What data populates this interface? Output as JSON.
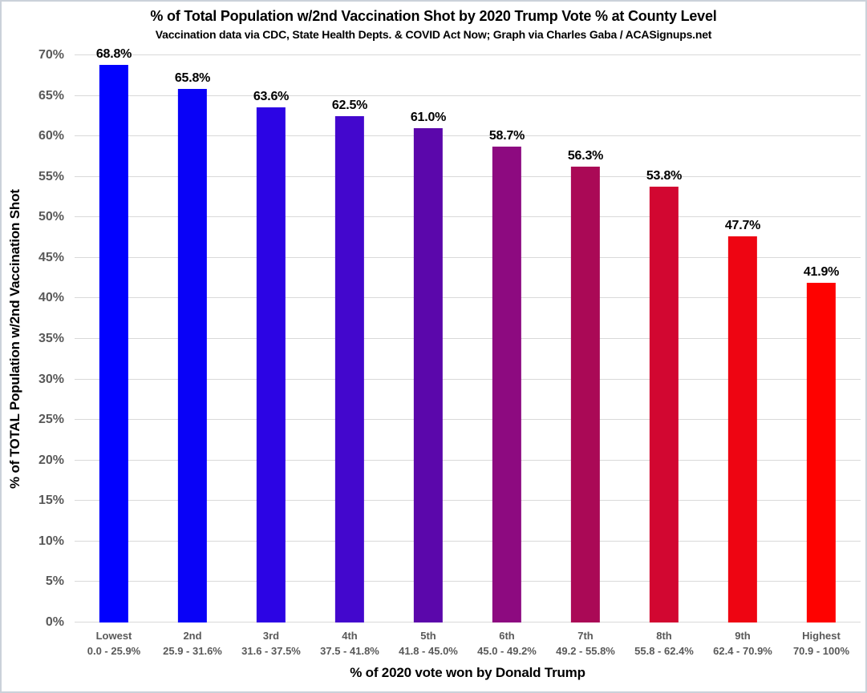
{
  "colors": {
    "frame_border": "#cbd1da",
    "gridline": "#d9d9d9",
    "axis_text": "#595959",
    "title_text": "#000000"
  },
  "chart_data": {
    "type": "bar",
    "title": "% of Total Population w/2nd Vaccination Shot by 2020 Trump Vote % at County Level",
    "subtitle": "Vaccination data via CDC, State Health Depts. & COVID Act Now; Graph via Charles Gaba / ACASignups.net",
    "xlabel": "% of 2020 vote won by Donald Trump",
    "ylabel": "% of TOTAL Population w/2nd Vaccination Shot",
    "ylim": [
      0,
      70
    ],
    "ytick_step": 5,
    "grid": true,
    "legend": "none",
    "yticks": [
      "0%",
      "5%",
      "10%",
      "15%",
      "20%",
      "25%",
      "30%",
      "35%",
      "40%",
      "45%",
      "50%",
      "55%",
      "60%",
      "65%",
      "70%"
    ],
    "categories": [
      {
        "tier": "Lowest",
        "range": "0.0 - 25.9%"
      },
      {
        "tier": "2nd",
        "range": "25.9 - 31.6%"
      },
      {
        "tier": "3rd",
        "range": "31.6 - 37.5%"
      },
      {
        "tier": "4th",
        "range": "37.5 - 41.8%"
      },
      {
        "tier": "5th",
        "range": "41.8 - 45.0%"
      },
      {
        "tier": "6th",
        "range": "45.0 - 49.2%"
      },
      {
        "tier": "7th",
        "range": "49.2 - 55.8%"
      },
      {
        "tier": "8th",
        "range": "55.8 - 62.4%"
      },
      {
        "tier": "9th",
        "range": "62.4 - 70.9%"
      },
      {
        "tier": "Highest",
        "range": "70.9 - 100%"
      }
    ],
    "values": [
      68.8,
      65.8,
      63.6,
      62.5,
      61.0,
      58.7,
      56.3,
      53.8,
      47.7,
      41.9
    ],
    "value_labels": [
      "68.8%",
      "65.8%",
      "63.6%",
      "62.5%",
      "61.0%",
      "58.7%",
      "56.3%",
      "53.8%",
      "47.7%",
      "41.9%"
    ],
    "bar_colors": [
      "#0100fe",
      "#0902f7",
      "#2c04e4",
      "#4307cd",
      "#5b07ab",
      "#8d0a80",
      "#aa0956",
      "#d20731",
      "#ee0512",
      "#fe0200"
    ]
  }
}
